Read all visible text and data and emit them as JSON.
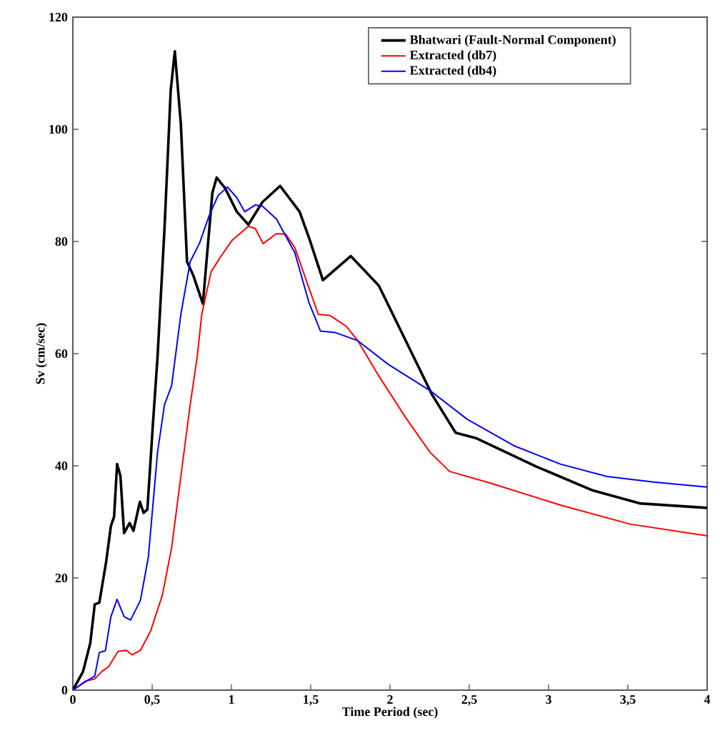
{
  "chart_data": {
    "type": "line",
    "xlabel": "Time Period (sec)",
    "ylabel": "Sv (cm/sec)",
    "xlim": [
      0,
      4
    ],
    "ylim": [
      0,
      120
    ],
    "xticks": [
      0,
      {
        "value": 0.5,
        "label": "0,5"
      },
      1,
      {
        "value": 1.5,
        "label": "1,5"
      },
      2,
      {
        "value": 2.5,
        "label": "2,5"
      },
      3,
      {
        "value": 3.5,
        "label": "3,5"
      },
      4
    ],
    "yticks": [
      0,
      20,
      40,
      60,
      80,
      100,
      120
    ],
    "legend": "top right",
    "grid": false,
    "marker": "none",
    "line_style": "solid",
    "series": [
      {
        "name": "Bhatwari (Fault-Normal Component)",
        "color": "#000000",
        "x": [
          0,
          0.064,
          0.11,
          0.138,
          0.167,
          0.21,
          0.24,
          0.26,
          0.279,
          0.3,
          0.323,
          0.358,
          0.382,
          0.423,
          0.446,
          0.47,
          0.505,
          0.534,
          0.578,
          0.617,
          0.643,
          0.681,
          0.72,
          0.76,
          0.82,
          0.88,
          0.907,
          0.96,
          1.034,
          1.107,
          1.195,
          1.307,
          1.43,
          1.49,
          1.577,
          1.753,
          1.93,
          2.106,
          2.267,
          2.414,
          2.546,
          2.928,
          3.28,
          3.574,
          4
        ],
        "values": [
          0,
          3.3,
          8.4,
          15.3,
          15.6,
          22.9,
          29.3,
          30.9,
          40.3,
          38.2,
          28,
          29.8,
          28.4,
          33.6,
          31.6,
          32.2,
          47.5,
          59.4,
          82.3,
          106.9,
          113.9,
          101,
          76.4,
          73.9,
          68.9,
          88.7,
          91.4,
          89.5,
          85.3,
          83,
          87,
          89.9,
          85.3,
          80.6,
          73.1,
          77.4,
          72.1,
          61.9,
          52.6,
          45.9,
          44.9,
          39.8,
          35.6,
          33.3,
          32.5
        ]
      },
      {
        "name": "Extracted (db7)",
        "color": "#ff0000",
        "x": [
          0,
          0.08,
          0.138,
          0.182,
          0.226,
          0.285,
          0.337,
          0.373,
          0.426,
          0.49,
          0.564,
          0.623,
          0.681,
          0.74,
          0.784,
          0.813,
          0.872,
          0.93,
          1.004,
          1.107,
          1.151,
          1.2,
          1.284,
          1.342,
          1.4,
          1.489,
          1.548,
          1.621,
          1.724,
          1.797,
          1.93,
          2.106,
          2.253,
          2.376,
          2.634,
          3.075,
          3.515,
          4
        ],
        "values": [
          0,
          1.6,
          2,
          3.3,
          4.2,
          6.9,
          7.1,
          6.3,
          7.1,
          10.5,
          16.9,
          25.4,
          38.1,
          50.9,
          59.4,
          67,
          74.6,
          77.2,
          80.2,
          82.7,
          82.3,
          79.6,
          81.4,
          81.3,
          78.9,
          71.7,
          67,
          66.8,
          64.9,
          62.3,
          56,
          48.3,
          42.4,
          39,
          36.9,
          33,
          29.6,
          27.5
        ]
      },
      {
        "name": "Extracted (db4)",
        "color": "#0000ff",
        "x": [
          0,
          0.08,
          0.138,
          0.167,
          0.205,
          0.24,
          0.279,
          0.323,
          0.364,
          0.426,
          0.476,
          0.534,
          0.578,
          0.623,
          0.681,
          0.74,
          0.799,
          0.857,
          0.916,
          0.975,
          1.034,
          1.084,
          1.151,
          1.195,
          1.284,
          1.4,
          1.489,
          1.562,
          1.65,
          1.797,
          1.988,
          2.253,
          2.487,
          2.78,
          3.075,
          3.37,
          3.663,
          4
        ],
        "values": [
          0,
          1.5,
          2.5,
          6.7,
          7,
          13.1,
          16.2,
          13.1,
          12.5,
          16,
          23.7,
          42.4,
          50.9,
          54.3,
          67,
          76.4,
          79.7,
          84.4,
          88.2,
          89.7,
          87.8,
          85.3,
          86.5,
          86.3,
          84,
          78,
          69.1,
          64,
          63.8,
          62.3,
          58.1,
          53.4,
          48.3,
          43.6,
          40.3,
          38.1,
          37.1,
          36.2
        ]
      }
    ]
  }
}
